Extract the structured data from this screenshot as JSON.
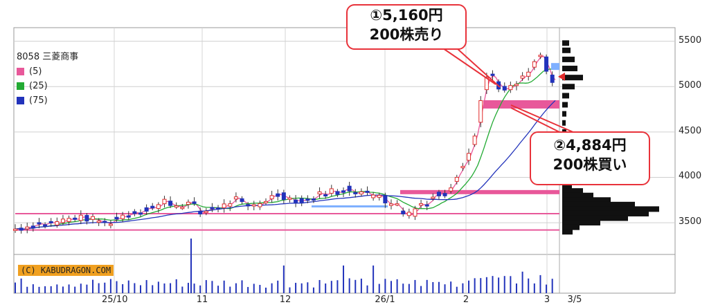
{
  "legend": {
    "ticker": "8058 三菱商事",
    "items": [
      {
        "label": "(5)",
        "color": "#e8589a"
      },
      {
        "label": "(25)",
        "color": "#22aa33"
      },
      {
        "label": "(75)",
        "color": "#2233bb"
      }
    ]
  },
  "copyright": "(C) KABUDRAGON.COM",
  "callouts": [
    {
      "line1": "①5,160円",
      "line2": "200株売り"
    },
    {
      "line1": "②4,884円",
      "line2": "200株買い"
    }
  ],
  "chart_data": {
    "type": "candlestick",
    "yticks": [
      3500,
      4000,
      4500,
      5000,
      5500
    ],
    "ylim": [
      3150,
      5650
    ],
    "xlabels": [
      "25/10",
      "11",
      "12",
      "26/1",
      "2",
      "3",
      "3/5"
    ],
    "current_price": 5110,
    "buy_price": 4884,
    "sell_price": 5160,
    "horizontal_levels": [
      3600,
      3420,
      3830,
      4800,
      3680
    ]
  }
}
